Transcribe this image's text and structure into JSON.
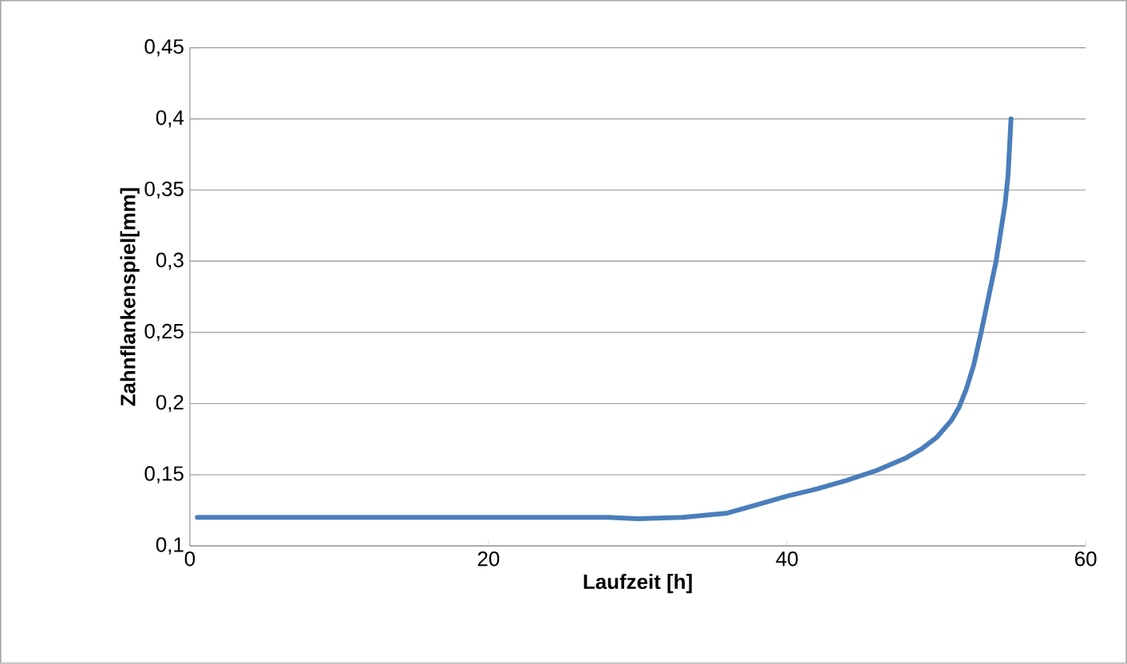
{
  "chart_data": {
    "type": "line",
    "xlabel": "Laufzeit [h]",
    "ylabel": "Zahnflankenspiel[mm]",
    "x": [
      0.5,
      5,
      10,
      15,
      20,
      25,
      28,
      30,
      33,
      36,
      38,
      40,
      42,
      44,
      46,
      48,
      49,
      50,
      51,
      51.5,
      52,
      52.5,
      53,
      53.5,
      54,
      54.3,
      54.6,
      54.8,
      55
    ],
    "values": [
      0.12,
      0.12,
      0.12,
      0.12,
      0.12,
      0.12,
      0.12,
      0.119,
      0.12,
      0.123,
      0.129,
      0.135,
      0.14,
      0.146,
      0.153,
      0.162,
      0.168,
      0.176,
      0.188,
      0.197,
      0.21,
      0.227,
      0.25,
      0.275,
      0.3,
      0.32,
      0.34,
      0.36,
      0.4
    ],
    "color": "#4a7ebb",
    "line_style": "solid",
    "marker": "none",
    "grid": "y",
    "xlim": [
      0,
      60
    ],
    "xticks": [
      0,
      20,
      40,
      60
    ],
    "ylim": [
      0.1,
      0.45
    ],
    "yticks": [
      {
        "value": 0.1,
        "label": "0,1"
      },
      {
        "value": 0.15,
        "label": "0,15"
      },
      {
        "value": 0.2,
        "label": "0,2"
      },
      {
        "value": 0.25,
        "label": "0,25"
      },
      {
        "value": 0.3,
        "label": "0,3"
      },
      {
        "value": 0.35,
        "label": "0,35"
      },
      {
        "value": 0.4,
        "label": "0,4"
      },
      {
        "value": 0.45,
        "label": "0,45"
      }
    ]
  }
}
